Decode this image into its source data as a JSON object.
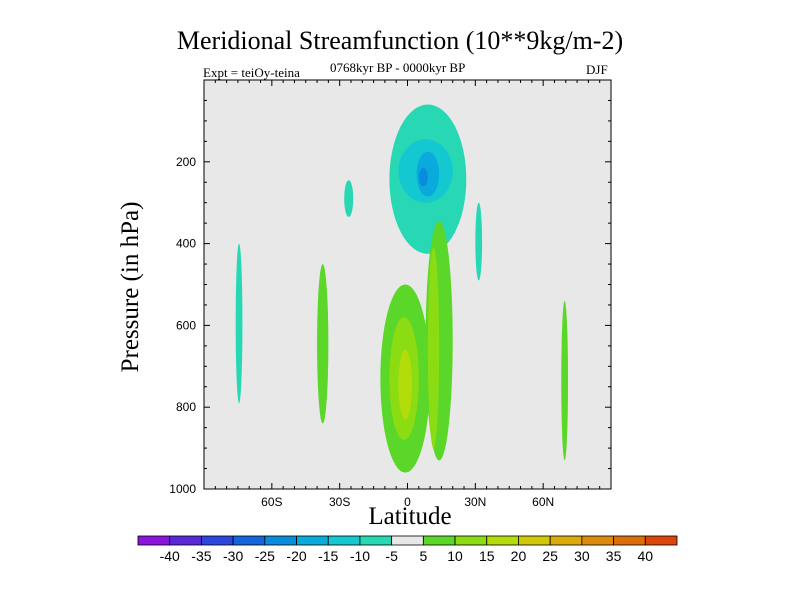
{
  "chart_data": {
    "type": "heatmap",
    "title": "Meridional Streamfunction (10**9kg/m-2)",
    "subtitle_left": "Expt = teiOy-teina",
    "subtitle_center": "0768kyr BP - 0000kyr BP",
    "subtitle_right": "DJF",
    "xlabel": "Latitude",
    "ylabel": "Pressure (in hPa)",
    "xlim": [
      -90,
      90
    ],
    "ylim": [
      1000,
      0
    ],
    "x_ticks": [
      {
        "value": -60,
        "label": "60S"
      },
      {
        "value": -30,
        "label": "30S"
      },
      {
        "value": 0,
        "label": "0"
      },
      {
        "value": 30,
        "label": "30N"
      },
      {
        "value": 60,
        "label": "60N"
      }
    ],
    "y_ticks": [
      {
        "value": 200,
        "label": "200"
      },
      {
        "value": 400,
        "label": "400"
      },
      {
        "value": 600,
        "label": "600"
      },
      {
        "value": 800,
        "label": "800"
      },
      {
        "value": 1000,
        "label": "1000"
      }
    ],
    "background_color": "#e8e8e8",
    "colorbar": {
      "labels": [
        "-40",
        "-35",
        "-30",
        "-25",
        "-20",
        "-15",
        "-10",
        "-5",
        "5",
        "10",
        "15",
        "20",
        "25",
        "30",
        "35",
        "40"
      ],
      "colors": [
        "#8c14dc",
        "#5a28d7",
        "#2d46dc",
        "#1464dc",
        "#0a8cdc",
        "#0aaadc",
        "#14c8d2",
        "#28d7b4",
        "#e8e8e8",
        "#5ad728",
        "#8cdc14",
        "#b4dc0a",
        "#d2c80a",
        "#dcaa0a",
        "#dc8c0a",
        "#dc6e0a",
        "#dc460a"
      ]
    },
    "contour_regions": [
      {
        "value": -7,
        "lat_range": [
          -76,
          -73
        ],
        "p_range": [
          400,
          790
        ],
        "color": "#28d7b4"
      },
      {
        "value": -7,
        "lat_range": [
          -28,
          -24
        ],
        "p_range": [
          245,
          335
        ],
        "color": "#28d7b4"
      },
      {
        "value": -7,
        "lat_range": [
          30,
          33
        ],
        "p_range": [
          300,
          490
        ],
        "color": "#28d7b4"
      },
      {
        "value": -7,
        "lat_range": [
          -8,
          26
        ],
        "p_range": [
          60,
          425
        ],
        "color": "#28d7b4"
      },
      {
        "value": -12,
        "lat_range": [
          -4,
          20
        ],
        "p_range": [
          145,
          300
        ],
        "color": "#14c8d2"
      },
      {
        "value": -17,
        "lat_range": [
          4,
          14
        ],
        "p_range": [
          175,
          285
        ],
        "color": "#0aaadc"
      },
      {
        "value": -22,
        "lat_range": [
          5,
          9
        ],
        "p_range": [
          215,
          260
        ],
        "color": "#0a8cdc"
      },
      {
        "value": 7,
        "lat_range": [
          -40,
          -35
        ],
        "p_range": [
          450,
          840
        ],
        "color": "#5ad728"
      },
      {
        "value": 7,
        "lat_range": [
          -12,
          10
        ],
        "p_range": [
          500,
          960
        ],
        "color": "#5ad728"
      },
      {
        "value": 7,
        "lat_range": [
          8,
          20
        ],
        "p_range": [
          345,
          930
        ],
        "color": "#5ad728"
      },
      {
        "value": 7,
        "lat_range": [
          68,
          71
        ],
        "p_range": [
          540,
          930
        ],
        "color": "#5ad728"
      },
      {
        "value": 12,
        "lat_range": [
          -8,
          5
        ],
        "p_range": [
          580,
          880
        ],
        "color": "#8cdc14"
      },
      {
        "value": 12,
        "lat_range": [
          9,
          14
        ],
        "p_range": [
          410,
          900
        ],
        "color": "#8cdc14"
      },
      {
        "value": 17,
        "lat_range": [
          -4,
          2
        ],
        "p_range": [
          660,
          830
        ],
        "color": "#b4dc0a"
      }
    ]
  }
}
